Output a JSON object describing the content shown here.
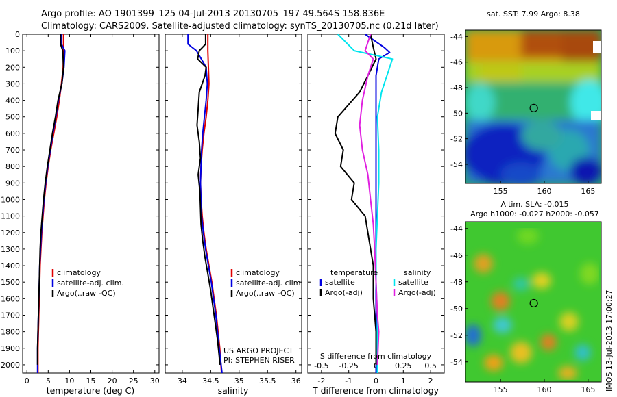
{
  "header": {
    "line1": "Argo profile: AO 1901399_125 04-Jul-2013 20130705_197 49.564S 158.836E",
    "line2": "Climatology: CARS2009. Satellite-adjusted climatology: synTS_20130705.nc (0.21d later)"
  },
  "credit": {
    "line1": "US ARGO PROJECT",
    "line2": "PI: STEPHEN RISER"
  },
  "timestamp": "IMOS 13-Jul-2013 17:00:27",
  "colors": {
    "climatology": "#e00000",
    "satellite": "#0000e0",
    "argo": "#000000",
    "sat_sal": "#00e5ee",
    "argo_sal": "#e020e0"
  },
  "chart_data": [
    {
      "type": "line",
      "panel": "temperature",
      "xlabel": "temperature (deg C)",
      "xlim": [
        -1,
        31
      ],
      "xticks": [
        0,
        5,
        10,
        15,
        20,
        25,
        30
      ],
      "ylim": [
        2050,
        0
      ],
      "yticks": [
        0,
        100,
        200,
        300,
        400,
        500,
        600,
        700,
        800,
        900,
        1000,
        1100,
        1200,
        1300,
        1400,
        1500,
        1600,
        1700,
        1800,
        1900,
        2000
      ],
      "legend": [
        "climatology",
        "satellite-adj. clim.",
        "Argo(..raw -QC)"
      ],
      "series": [
        {
          "name": "climatology",
          "color": "#e00000",
          "points": [
            [
              8.6,
              0
            ],
            [
              8.6,
              100
            ],
            [
              8.5,
              200
            ],
            [
              8.1,
              300
            ],
            [
              7.6,
              400
            ],
            [
              7.0,
              500
            ],
            [
              6.3,
              600
            ],
            [
              5.6,
              700
            ],
            [
              5.0,
              800
            ],
            [
              4.5,
              900
            ],
            [
              4.1,
              1000
            ],
            [
              3.8,
              1100
            ],
            [
              3.5,
              1200
            ],
            [
              3.3,
              1300
            ],
            [
              3.1,
              1400
            ],
            [
              3.0,
              1500
            ],
            [
              2.9,
              1600
            ],
            [
              2.8,
              1700
            ],
            [
              2.7,
              1800
            ],
            [
              2.6,
              1900
            ],
            [
              2.6,
              2050
            ]
          ]
        },
        {
          "name": "satellite-adj. clim.",
          "color": "#0000e0",
          "points": [
            [
              8.1,
              0
            ],
            [
              8.1,
              60
            ],
            [
              8.9,
              100
            ],
            [
              8.7,
              200
            ],
            [
              8.2,
              300
            ],
            [
              7.4,
              400
            ],
            [
              6.8,
              500
            ],
            [
              6.1,
              600
            ],
            [
              5.5,
              700
            ],
            [
              4.9,
              800
            ],
            [
              4.4,
              900
            ],
            [
              4.0,
              1000
            ],
            [
              3.7,
              1100
            ],
            [
              3.4,
              1200
            ],
            [
              3.2,
              1300
            ],
            [
              3.0,
              1400
            ],
            [
              2.9,
              1500
            ],
            [
              2.8,
              1600
            ],
            [
              2.7,
              1700
            ],
            [
              2.6,
              1800
            ],
            [
              2.5,
              1900
            ],
            [
              2.5,
              2050
            ]
          ]
        },
        {
          "name": "Argo(..raw -QC)",
          "color": "#000000",
          "points": [
            [
              7.9,
              0
            ],
            [
              7.9,
              60
            ],
            [
              8.4,
              100
            ],
            [
              8.6,
              200
            ],
            [
              8.2,
              300
            ],
            [
              7.3,
              400
            ],
            [
              6.7,
              500
            ],
            [
              6.0,
              600
            ],
            [
              5.4,
              700
            ],
            [
              4.8,
              800
            ],
            [
              4.3,
              900
            ],
            [
              3.9,
              1000
            ],
            [
              3.6,
              1100
            ],
            [
              3.3,
              1200
            ],
            [
              3.1,
              1300
            ],
            [
              3.0,
              1400
            ],
            [
              2.9,
              1500
            ],
            [
              2.8,
              1600
            ],
            [
              2.7,
              1700
            ],
            [
              2.6,
              1800
            ],
            [
              2.5,
              1900
            ],
            [
              2.5,
              2000
            ]
          ]
        }
      ]
    },
    {
      "type": "line",
      "panel": "salinity",
      "xlabel": "salinity",
      "xlim": [
        33.7,
        36.1
      ],
      "xticks": [
        34,
        34.5,
        35,
        35.5,
        36
      ],
      "ylim": [
        2050,
        0
      ],
      "legend": [
        "climatology",
        "satellite-adj. clim.",
        "Argo(..raw -QC)"
      ],
      "series": [
        {
          "name": "climatology",
          "color": "#e00000",
          "points": [
            [
              34.45,
              0
            ],
            [
              34.45,
              100
            ],
            [
              34.46,
              200
            ],
            [
              34.47,
              300
            ],
            [
              34.45,
              400
            ],
            [
              34.42,
              500
            ],
            [
              34.38,
              600
            ],
            [
              34.35,
              700
            ],
            [
              34.33,
              800
            ],
            [
              34.32,
              900
            ],
            [
              34.33,
              1000
            ],
            [
              34.35,
              1100
            ],
            [
              34.38,
              1200
            ],
            [
              34.42,
              1300
            ],
            [
              34.47,
              1400
            ],
            [
              34.52,
              1500
            ],
            [
              34.56,
              1600
            ],
            [
              34.6,
              1700
            ],
            [
              34.63,
              1800
            ],
            [
              34.66,
              1900
            ],
            [
              34.69,
              2050
            ]
          ]
        },
        {
          "name": "satellite-adj. clim.",
          "color": "#0000e0",
          "points": [
            [
              34.1,
              0
            ],
            [
              34.1,
              60
            ],
            [
              34.25,
              100
            ],
            [
              34.42,
              200
            ],
            [
              34.44,
              300
            ],
            [
              34.42,
              400
            ],
            [
              34.39,
              500
            ],
            [
              34.36,
              600
            ],
            [
              34.34,
              700
            ],
            [
              34.33,
              800
            ],
            [
              34.32,
              900
            ],
            [
              34.33,
              1000
            ],
            [
              34.34,
              1100
            ],
            [
              34.37,
              1200
            ],
            [
              34.41,
              1300
            ],
            [
              34.46,
              1400
            ],
            [
              34.51,
              1500
            ],
            [
              34.55,
              1600
            ],
            [
              34.59,
              1700
            ],
            [
              34.62,
              1800
            ],
            [
              34.65,
              1900
            ],
            [
              34.7,
              2050
            ]
          ]
        },
        {
          "name": "Argo(..raw -QC)",
          "color": "#000000",
          "points": [
            [
              34.41,
              0
            ],
            [
              34.41,
              60
            ],
            [
              34.3,
              100
            ],
            [
              34.27,
              150
            ],
            [
              34.42,
              200
            ],
            [
              34.4,
              250
            ],
            [
              34.3,
              350
            ],
            [
              34.28,
              450
            ],
            [
              34.26,
              550
            ],
            [
              34.3,
              650
            ],
            [
              34.32,
              750
            ],
            [
              34.28,
              850
            ],
            [
              34.31,
              950
            ],
            [
              34.32,
              1050
            ],
            [
              34.33,
              1150
            ],
            [
              34.36,
              1250
            ],
            [
              34.4,
              1350
            ],
            [
              34.45,
              1450
            ],
            [
              34.5,
              1550
            ],
            [
              34.54,
              1650
            ],
            [
              34.58,
              1750
            ],
            [
              34.62,
              1850
            ],
            [
              34.65,
              1950
            ],
            [
              34.66,
              2000
            ]
          ]
        }
      ]
    },
    {
      "type": "line",
      "panel": "difference",
      "xlabel": "T difference from climatology",
      "xlim": [
        -2.5,
        2.5
      ],
      "xticks": [
        -2,
        -1,
        0,
        1,
        2
      ],
      "top_axis_label": "S difference from climatology",
      "top_ticks": [
        -0.5,
        -0.25,
        0,
        0.25,
        0.5
      ],
      "ylim": [
        2050,
        0
      ],
      "legend_groups": [
        {
          "title": "temperature",
          "items": [
            "satellite",
            "Argo(-adj)"
          ]
        },
        {
          "title": "salinity",
          "items": [
            "satellite",
            "Argo(-adj)"
          ]
        }
      ],
      "series": [
        {
          "name": "temperature satellite",
          "color": "#0000e0",
          "points": [
            [
              -0.4,
              0
            ],
            [
              0.3,
              80
            ],
            [
              0.5,
              110
            ],
            [
              0.1,
              150
            ],
            [
              0,
              250
            ],
            [
              0,
              400
            ],
            [
              0,
              600
            ],
            [
              0,
              800
            ],
            [
              0,
              1000
            ],
            [
              0,
              1200
            ],
            [
              0,
              1400
            ],
            [
              0,
              1600
            ],
            [
              0,
              1800
            ],
            [
              0,
              2050
            ]
          ]
        },
        {
          "name": "temperature Argo(-adj)",
          "color": "#000000",
          "points": [
            [
              -0.2,
              0
            ],
            [
              -0.1,
              80
            ],
            [
              0,
              150
            ],
            [
              -0.3,
              250
            ],
            [
              -0.6,
              350
            ],
            [
              -1.4,
              500
            ],
            [
              -1.5,
              600
            ],
            [
              -1.2,
              700
            ],
            [
              -1.3,
              800
            ],
            [
              -0.8,
              900
            ],
            [
              -0.9,
              1000
            ],
            [
              -0.4,
              1100
            ],
            [
              -0.3,
              1200
            ],
            [
              -0.1,
              1400
            ],
            [
              -0.1,
              1600
            ],
            [
              0,
              1800
            ],
            [
              0,
              2000
            ]
          ]
        },
        {
          "name": "salinity satellite",
          "color": "#00e5ee",
          "points": [
            [
              -1.4,
              0
            ],
            [
              -0.8,
              100
            ],
            [
              0.6,
              150
            ],
            [
              0.4,
              250
            ],
            [
              0.2,
              350
            ],
            [
              0.05,
              500
            ],
            [
              0.1,
              700
            ],
            [
              0.1,
              900
            ],
            [
              0.05,
              1100
            ],
            [
              0,
              1300
            ],
            [
              0,
              1500
            ],
            [
              0.05,
              1700
            ],
            [
              0.05,
              2050
            ]
          ]
        },
        {
          "name": "salinity Argo(-adj)",
          "color": "#e020e0",
          "points": [
            [
              -0.2,
              0
            ],
            [
              -0.4,
              100
            ],
            [
              -0.1,
              150
            ],
            [
              -0.3,
              250
            ],
            [
              -0.5,
              400
            ],
            [
              -0.6,
              550
            ],
            [
              -0.5,
              700
            ],
            [
              -0.3,
              850
            ],
            [
              -0.2,
              1000
            ],
            [
              -0.1,
              1150
            ],
            [
              -0.05,
              1300
            ],
            [
              0,
              1500
            ],
            [
              0.05,
              1700
            ],
            [
              0.1,
              1800
            ],
            [
              0.05,
              2000
            ]
          ]
        }
      ]
    },
    {
      "type": "heatmap",
      "panel": "sst-map",
      "title": "sat. SST: 7.99 Argo: 8.38",
      "xlim": [
        151,
        166.5
      ],
      "ylim": [
        -55.5,
        -43.5
      ],
      "xticks": [
        155,
        160,
        165
      ],
      "yticks": [
        -44,
        -46,
        -48,
        -50,
        -52,
        -54
      ],
      "marker": [
        158.8,
        -49.6
      ]
    },
    {
      "type": "heatmap",
      "panel": "sla-map",
      "title": "Altim. SLA: -0.015",
      "subtitle": "Argo h1000: -0.027 h2000: -0.057",
      "xlim": [
        151,
        166.5
      ],
      "ylim": [
        -55.5,
        -43.5
      ],
      "xticks": [
        155,
        160,
        165
      ],
      "yticks": [
        -44,
        -46,
        -48,
        -50,
        -52,
        -54
      ],
      "marker": [
        158.8,
        -49.6
      ]
    }
  ]
}
